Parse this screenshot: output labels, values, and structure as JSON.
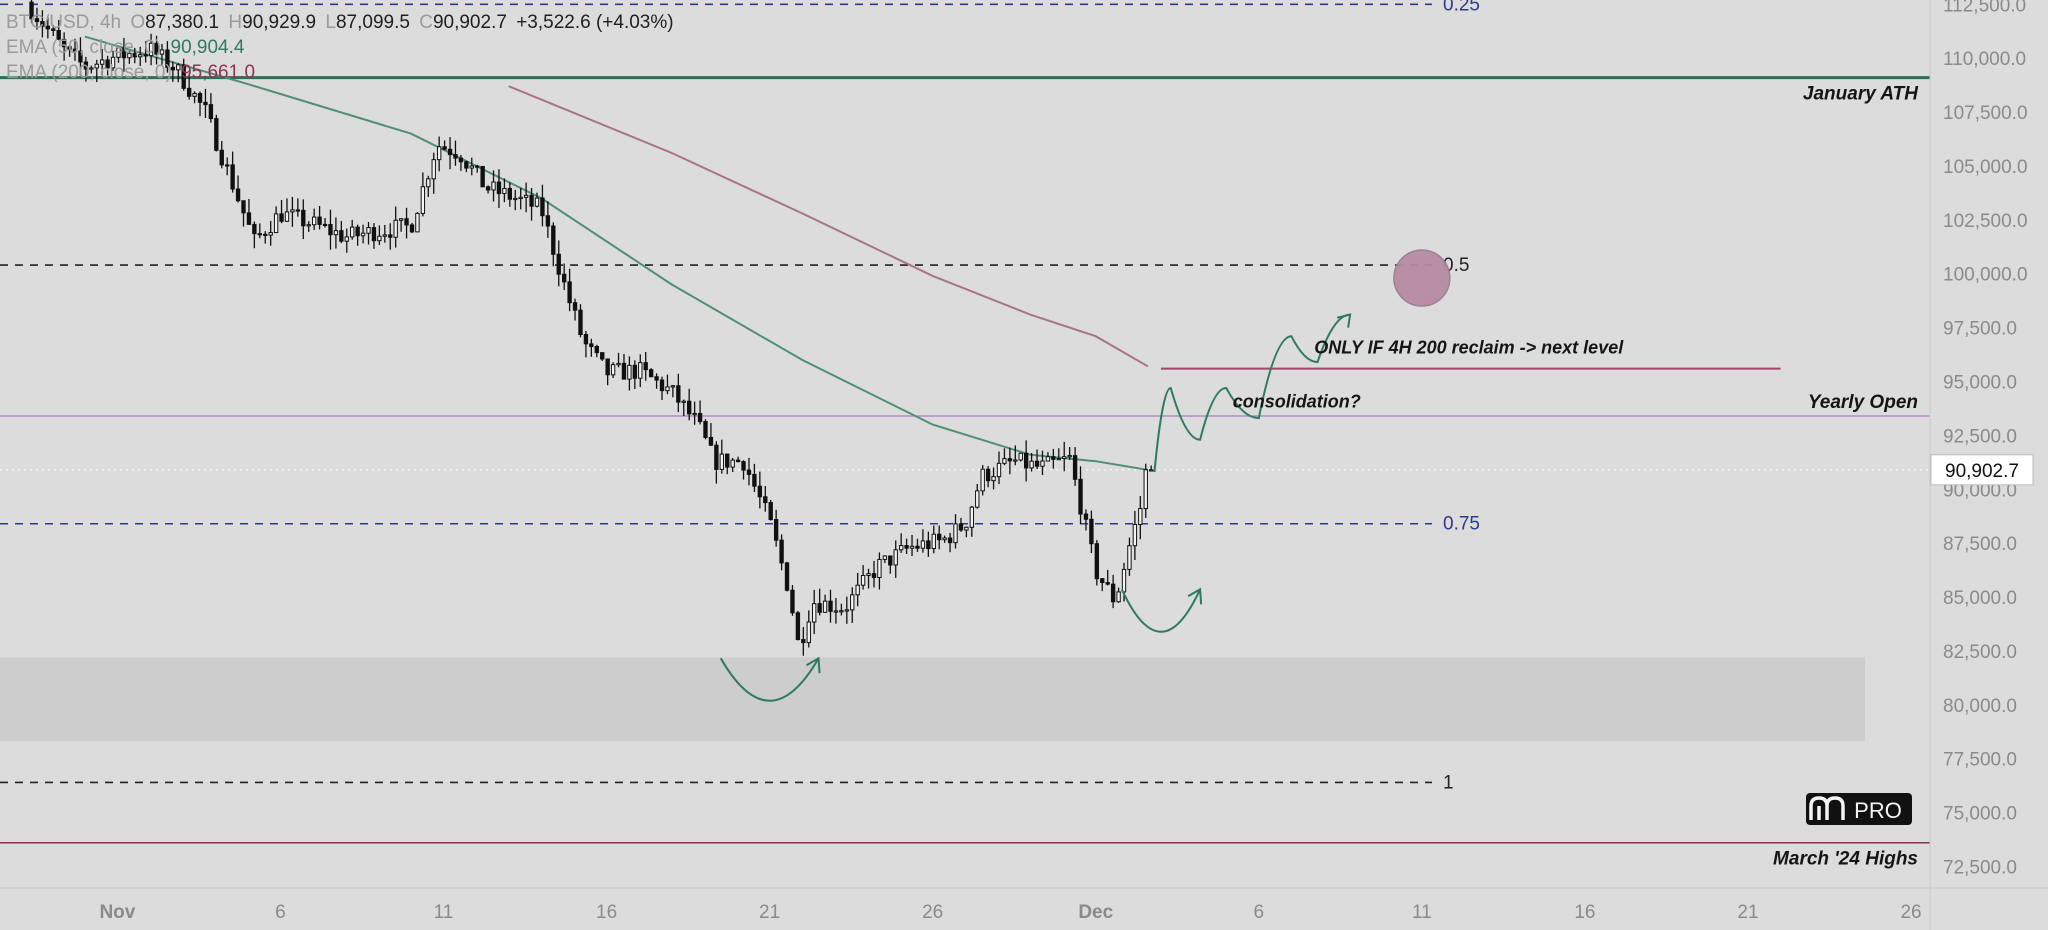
{
  "ohlc_legend": {
    "symbol_interval": "BTC/USD, 4h",
    "open_label": "O",
    "open": "87,380.1",
    "high_label": "H",
    "high": "90,929.9",
    "low_label": "L",
    "low": "87,099.5",
    "close_label": "C",
    "close": "90,902.7",
    "change": "+3,522.6 (+4.03%)",
    "ema1_label": "EMA (50, close, 0)",
    "ema1_value": "90,904.4",
    "ema2_label": "EMA (200, close, 0)",
    "ema2_value": "95,661.0"
  },
  "colors": {
    "background": "#dcdcdc",
    "candle": "#111111",
    "ema_fast": "#4f8f72",
    "ema_slow": "#a8738a",
    "fib": "#2b3a8f",
    "ath": "#2e6f53",
    "yearly_open": "#b48ac8",
    "march_highs": "#8e3355",
    "target_circle": "#b78ba3",
    "demand_zone": "#cdcdcd"
  },
  "chart_data": {
    "type": "candlestick",
    "y_ticks": [
      "72,500.0",
      "75,000.0",
      "77,500.0",
      "80,000.0",
      "82,500.0",
      "85,000.0",
      "87,500.0",
      "90,000.0",
      "92,500.0",
      "95,000.0",
      "97,500.0",
      "100,000.0",
      "102,500.0",
      "105,000.0",
      "107,500.0",
      "110,000.0",
      "112,500.0"
    ],
    "y_tick_values": [
      72500,
      75000,
      77500,
      80000,
      82500,
      85000,
      87500,
      90000,
      92500,
      95000,
      97500,
      100000,
      102500,
      105000,
      107500,
      110000,
      112500
    ],
    "ylim": [
      71500,
      112700
    ],
    "x_ticks": [
      {
        "label": "Nov",
        "day": 1,
        "bold": true
      },
      {
        "label": "6",
        "day": 6,
        "bold": false
      },
      {
        "label": "11",
        "day": 11,
        "bold": false
      },
      {
        "label": "16",
        "day": 16,
        "bold": false
      },
      {
        "label": "21",
        "day": 21,
        "bold": false
      },
      {
        "label": "26",
        "day": 26,
        "bold": false
      },
      {
        "label": "Dec",
        "day": 31,
        "bold": true
      },
      {
        "label": "6",
        "day": 36,
        "bold": false
      },
      {
        "label": "11",
        "day": 41,
        "bold": false
      },
      {
        "label": "16",
        "day": 46,
        "bold": false
      },
      {
        "label": "21",
        "day": 51,
        "bold": false
      },
      {
        "label": "26",
        "day": 56,
        "bold": false
      }
    ],
    "x_day_range": [
      -2.6,
      60.2
    ],
    "current_price": 90902.7,
    "current_price_label": "90,902.7",
    "price_path_anchors": [
      {
        "day": -1.8,
        "price": 112600
      },
      {
        "day": -0.6,
        "price": 110300
      },
      {
        "day": 0.0,
        "price": 109600
      },
      {
        "day": 1.0,
        "price": 110100
      },
      {
        "day": 2.0,
        "price": 110400
      },
      {
        "day": 2.8,
        "price": 109500
      },
      {
        "day": 3.7,
        "price": 107500
      },
      {
        "day": 4.5,
        "price": 104300
      },
      {
        "day": 5.2,
        "price": 101500
      },
      {
        "day": 6.0,
        "price": 102800
      },
      {
        "day": 7.0,
        "price": 102300
      },
      {
        "day": 8.0,
        "price": 101700
      },
      {
        "day": 9.0,
        "price": 102000
      },
      {
        "day": 10.0,
        "price": 102200
      },
      {
        "day": 10.8,
        "price": 106000
      },
      {
        "day": 11.5,
        "price": 105600
      },
      {
        "day": 12.3,
        "price": 104000
      },
      {
        "day": 13.2,
        "price": 103500
      },
      {
        "day": 14.0,
        "price": 103000
      },
      {
        "day": 14.8,
        "price": 99000
      },
      {
        "day": 15.3,
        "price": 96800
      },
      {
        "day": 16.0,
        "price": 95400
      },
      {
        "day": 17.0,
        "price": 95500
      },
      {
        "day": 18.0,
        "price": 94500
      },
      {
        "day": 18.8,
        "price": 93000
      },
      {
        "day": 19.3,
        "price": 91300
      },
      {
        "day": 20.2,
        "price": 91300
      },
      {
        "day": 21.0,
        "price": 88500
      },
      {
        "day": 21.6,
        "price": 85300
      },
      {
        "day": 21.9,
        "price": 82600
      },
      {
        "day": 22.3,
        "price": 84800
      },
      {
        "day": 23.3,
        "price": 84500
      },
      {
        "day": 24.3,
        "price": 86400
      },
      {
        "day": 25.3,
        "price": 87300
      },
      {
        "day": 26.3,
        "price": 87600
      },
      {
        "day": 27.0,
        "price": 88400
      },
      {
        "day": 27.5,
        "price": 90600
      },
      {
        "day": 28.5,
        "price": 91300
      },
      {
        "day": 29.3,
        "price": 91000
      },
      {
        "day": 30.2,
        "price": 91400
      },
      {
        "day": 30.5,
        "price": 89500
      },
      {
        "day": 31.0,
        "price": 86200
      },
      {
        "day": 31.6,
        "price": 84800
      },
      {
        "day": 32.0,
        "price": 87200
      },
      {
        "day": 32.7,
        "price": 90900
      }
    ],
    "ema_fast": [
      {
        "day": 0.0,
        "price": 111000
      },
      {
        "day": 5.0,
        "price": 108800
      },
      {
        "day": 10.0,
        "price": 106500
      },
      {
        "day": 14.0,
        "price": 103500
      },
      {
        "day": 18.0,
        "price": 99500
      },
      {
        "day": 22.0,
        "price": 96000
      },
      {
        "day": 26.0,
        "price": 93000
      },
      {
        "day": 29.0,
        "price": 91600
      },
      {
        "day": 31.0,
        "price": 91300
      },
      {
        "day": 32.6,
        "price": 90900
      }
    ],
    "ema_slow": [
      {
        "day": 13.0,
        "price": 108700
      },
      {
        "day": 18.0,
        "price": 105600
      },
      {
        "day": 22.0,
        "price": 102800
      },
      {
        "day": 26.0,
        "price": 99900
      },
      {
        "day": 29.0,
        "price": 98100
      },
      {
        "day": 31.0,
        "price": 97100
      },
      {
        "day": 32.6,
        "price": 95700
      }
    ],
    "fib_levels": [
      {
        "label": "0.25",
        "price": 112500,
        "color": "#2b3a8f"
      },
      {
        "label": "0.5",
        "price": 100400,
        "color": "#222222"
      },
      {
        "label": "0.75",
        "price": 88400,
        "color": "#2b3a8f"
      },
      {
        "label": "1",
        "price": 76400,
        "color": "#222222"
      }
    ],
    "horizontal_levels": [
      {
        "label": "January ATH",
        "price": 109100,
        "color": "#2e6f53",
        "width": 3
      },
      {
        "label": "Yearly Open",
        "price": 93400,
        "color": "#b48ac8",
        "width": 1.5
      },
      {
        "label": "March '24 Highs",
        "price": 73600,
        "color": "#8e3355",
        "width": 1.5
      }
    ],
    "demand_zone": {
      "from": 78300,
      "to": 82200
    },
    "reclaim_line": {
      "price": 95600,
      "from_day": 33.0,
      "to_day": 52.0
    },
    "annotations": [
      {
        "text": "ONLY IF 4H 200 reclaim  -> next level",
        "day": 37.7,
        "price": 96300
      },
      {
        "text": "consolidation?",
        "day": 35.2,
        "price": 93800
      }
    ],
    "target_circle": {
      "day": 41.0,
      "price": 99800
    },
    "projection_path": [
      {
        "day": 32.8,
        "price": 90800
      },
      {
        "day": 33.3,
        "price": 94700
      },
      {
        "day": 34.2,
        "price": 92300
      },
      {
        "day": 35.0,
        "price": 94700
      },
      {
        "day": 36.0,
        "price": 93300
      },
      {
        "day": 37.0,
        "price": 97100
      },
      {
        "day": 37.8,
        "price": 95900
      },
      {
        "day": 38.8,
        "price": 98100
      }
    ],
    "arc_left": {
      "day_from": 19.5,
      "day_to": 22.5,
      "price": 81000
    },
    "arc_right": {
      "day_from": 31.8,
      "day_to": 34.2,
      "price": 84200
    }
  },
  "brand": {
    "pro_label": "PRO"
  }
}
